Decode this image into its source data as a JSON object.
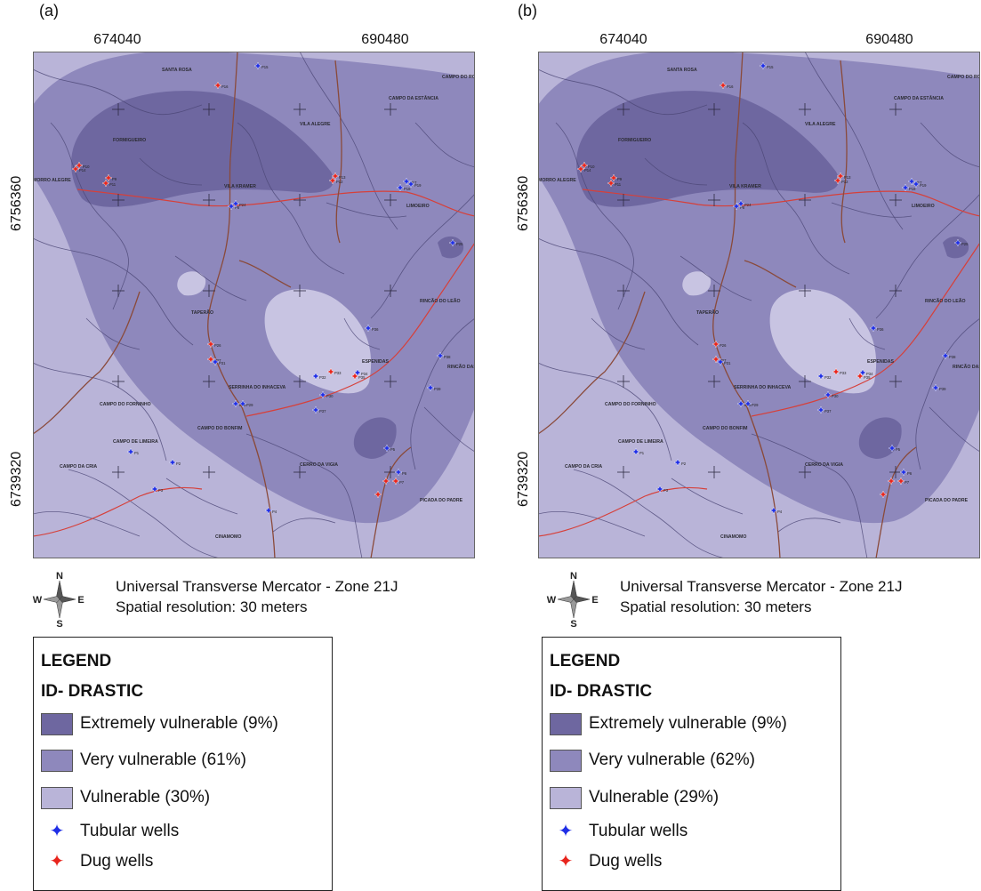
{
  "panels": [
    {
      "letter": "(a)",
      "coords": {
        "x_left": "674040",
        "x_right": "690480",
        "y_upper": "6756360",
        "y_lower": "6739320"
      },
      "projection": "Universal Transverse Mercator - Zone 21J",
      "resolution": "Spatial resolution: 30 meters",
      "legend": {
        "title": "LEGEND",
        "subtitle": "ID- DRASTIC",
        "classes": [
          {
            "label": "Extremely vulnerable (9%)",
            "percent": 9,
            "color": "#6e67a0"
          },
          {
            "label": "Very vulnerable (61%)",
            "percent": 61,
            "color": "#8e88bc"
          },
          {
            "label": "Vulnerable (30%)",
            "percent": 30,
            "color": "#b9b4d8"
          }
        ],
        "points": [
          {
            "label": "Tubular wells",
            "symbol": "✦",
            "color": "#1f2ee6"
          },
          {
            "label": "Dug wells",
            "symbol": "✦",
            "color": "#e8241c"
          }
        ]
      }
    },
    {
      "letter": "(b)",
      "coords": {
        "x_left": "674040",
        "x_right": "690480",
        "y_upper": "6756360",
        "y_lower": "6739320"
      },
      "projection": "Universal Transverse Mercator - Zone 21J",
      "resolution": "Spatial resolution: 30 meters",
      "legend": {
        "title": "LEGEND",
        "subtitle": "ID- DRASTIC",
        "classes": [
          {
            "label": "Extremely vulnerable (9%)",
            "percent": 9,
            "color": "#6e67a0"
          },
          {
            "label": "Very vulnerable (62%)",
            "percent": 62,
            "color": "#8e88bc"
          },
          {
            "label": "Vulnerable (29%)",
            "percent": 29,
            "color": "#b9b4d8"
          }
        ],
        "points": [
          {
            "label": "Tubular wells",
            "symbol": "✦",
            "color": "#1f2ee6"
          },
          {
            "label": "Dug wells",
            "symbol": "✦",
            "color": "#e8241c"
          }
        ]
      }
    }
  ],
  "compass": {
    "n": "N",
    "s": "S",
    "e": "E",
    "w": "W"
  },
  "place_names": [
    "SANTA ROSA",
    "CAMPO DO ROCHEDO",
    "CAMPO DA ESTÂNCIA",
    "VILA ALEGRE",
    "FORMIGUEIRO",
    "MORRO ALEGRE",
    "VILA KRAMER",
    "LIMOEIRO",
    "TAPERÃO",
    "RINCÃO DO LEÃO",
    "ESPENIDAS",
    "RINCÃO DAS LUZES",
    "SERRINHA DO INHACEVA",
    "CAMPO DO FORNINHO",
    "CAMPO DO BONFIM",
    "CAMPO DE LIMEIRA",
    "CAMPO DA CRIA",
    "CERRO DA VIGIA",
    "PICADA DO PADRE",
    "CINAMOMO"
  ],
  "well_labels": [
    "P15",
    "P16",
    "P17",
    "P18",
    "P19",
    "P12",
    "P13",
    "P14",
    "P10",
    "P11",
    "P9",
    "P8",
    "P24",
    "P25",
    "P26",
    "P27",
    "P31",
    "P32",
    "P33",
    "P34",
    "P35",
    "P36",
    "P28",
    "P29",
    "P30",
    "P37",
    "P38",
    "P39",
    "P1",
    "P2",
    "P3",
    "P4",
    "P5",
    "P6",
    "P7"
  ]
}
